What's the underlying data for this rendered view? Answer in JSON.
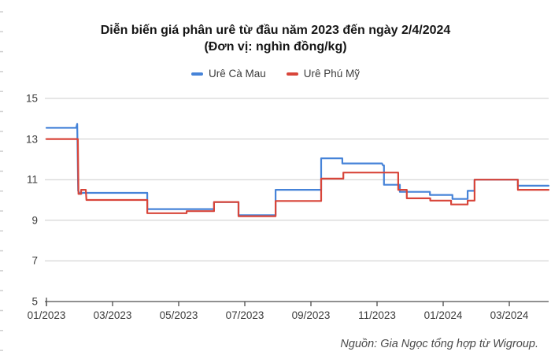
{
  "title": {
    "line1": "Diễn biến giá phân urê từ đầu năm 2023 đến ngày 2/4/2024",
    "line2": "(Đơn vị: nghìn đồng/kg)"
  },
  "legend": [
    {
      "label": "Urê Cà Mau",
      "color": "#4683d8"
    },
    {
      "label": "Urê Phú Mỹ",
      "color": "#d8453a"
    }
  ],
  "source": "Nguồn: Gia Ngọc tổng hợp từ Wigroup.",
  "colors": {
    "grid": "#cccccc",
    "axis": "#4d4d4d",
    "text": "#3c3c3c",
    "title": "#161616",
    "ruler_tick": "#cfcfcf"
  },
  "chart_data": {
    "type": "line",
    "subtype": "step",
    "title": "Diễn biến giá phân urê từ đầu năm 2023 đến ngày 2/4/2024",
    "subtitle": "(Đơn vị: nghìn đồng/kg)",
    "xlabel": "",
    "ylabel": "nghìn đồng/kg",
    "grid": true,
    "legend_position": "top",
    "x_unit": "months since 01/2023",
    "x_axis": {
      "range": [
        0,
        15.19
      ],
      "ticks": [
        {
          "m": 0,
          "label": "01/2023"
        },
        {
          "m": 2,
          "label": "03/2023"
        },
        {
          "m": 4,
          "label": "05/2023"
        },
        {
          "m": 6,
          "label": "07/2023"
        },
        {
          "m": 8,
          "label": "09/2023"
        },
        {
          "m": 10,
          "label": "11/2023"
        },
        {
          "m": 12,
          "label": "01/2024"
        },
        {
          "m": 14,
          "label": "03/2024"
        }
      ]
    },
    "y_axis": {
      "range": [
        5,
        15
      ],
      "ticks": [
        15,
        13,
        11,
        9,
        7,
        5
      ]
    },
    "series": [
      {
        "name": "Urê Cà Mau",
        "color": "#4683d8",
        "points": [
          [
            0,
            13.55
          ],
          [
            0.9,
            13.55
          ],
          [
            0.93,
            13.75
          ],
          [
            0.96,
            10.45
          ],
          [
            1.02,
            10.3
          ],
          [
            1.1,
            10.35
          ],
          [
            3.05,
            10.35
          ],
          [
            3.05,
            9.55
          ],
          [
            5.07,
            9.55
          ],
          [
            5.07,
            9.9
          ],
          [
            5.81,
            9.9
          ],
          [
            5.81,
            9.25
          ],
          [
            6.93,
            9.25
          ],
          [
            6.93,
            10.5
          ],
          [
            8.31,
            10.5
          ],
          [
            8.31,
            12.05
          ],
          [
            8.95,
            12.05
          ],
          [
            8.95,
            11.8
          ],
          [
            10.15,
            11.8
          ],
          [
            10.18,
            11.7
          ],
          [
            10.21,
            11.7
          ],
          [
            10.21,
            10.75
          ],
          [
            10.69,
            10.75
          ],
          [
            10.69,
            10.4
          ],
          [
            11.6,
            10.4
          ],
          [
            11.6,
            10.25
          ],
          [
            12.28,
            10.25
          ],
          [
            12.28,
            10.05
          ],
          [
            12.74,
            10.05
          ],
          [
            12.74,
            10.45
          ],
          [
            12.95,
            10.45
          ],
          [
            12.95,
            11.0
          ],
          [
            14.26,
            11.0
          ],
          [
            14.26,
            10.7
          ],
          [
            15.19,
            10.7
          ]
        ]
      },
      {
        "name": "Urê Phú Mỹ",
        "color": "#d8453a",
        "points": [
          [
            0,
            13.0
          ],
          [
            0.95,
            13.0
          ],
          [
            0.97,
            10.3
          ],
          [
            1.05,
            10.3
          ],
          [
            1.05,
            10.5
          ],
          [
            1.19,
            10.5
          ],
          [
            1.21,
            10.0
          ],
          [
            3.05,
            10.0
          ],
          [
            3.05,
            9.35
          ],
          [
            4.24,
            9.35
          ],
          [
            4.24,
            9.45
          ],
          [
            5.07,
            9.45
          ],
          [
            5.07,
            9.9
          ],
          [
            5.81,
            9.9
          ],
          [
            5.81,
            9.2
          ],
          [
            6.93,
            9.2
          ],
          [
            6.93,
            9.95
          ],
          [
            8.31,
            9.95
          ],
          [
            8.31,
            11.05
          ],
          [
            8.98,
            11.05
          ],
          [
            8.98,
            11.35
          ],
          [
            10.64,
            11.35
          ],
          [
            10.64,
            10.5
          ],
          [
            10.9,
            10.5
          ],
          [
            10.9,
            10.08
          ],
          [
            11.61,
            10.08
          ],
          [
            11.61,
            9.97
          ],
          [
            12.24,
            9.97
          ],
          [
            12.24,
            9.78
          ],
          [
            12.74,
            9.78
          ],
          [
            12.74,
            9.97
          ],
          [
            12.95,
            9.97
          ],
          [
            12.95,
            11.0
          ],
          [
            14.26,
            11.0
          ],
          [
            14.26,
            10.5
          ],
          [
            15.19,
            10.5
          ]
        ]
      }
    ]
  }
}
